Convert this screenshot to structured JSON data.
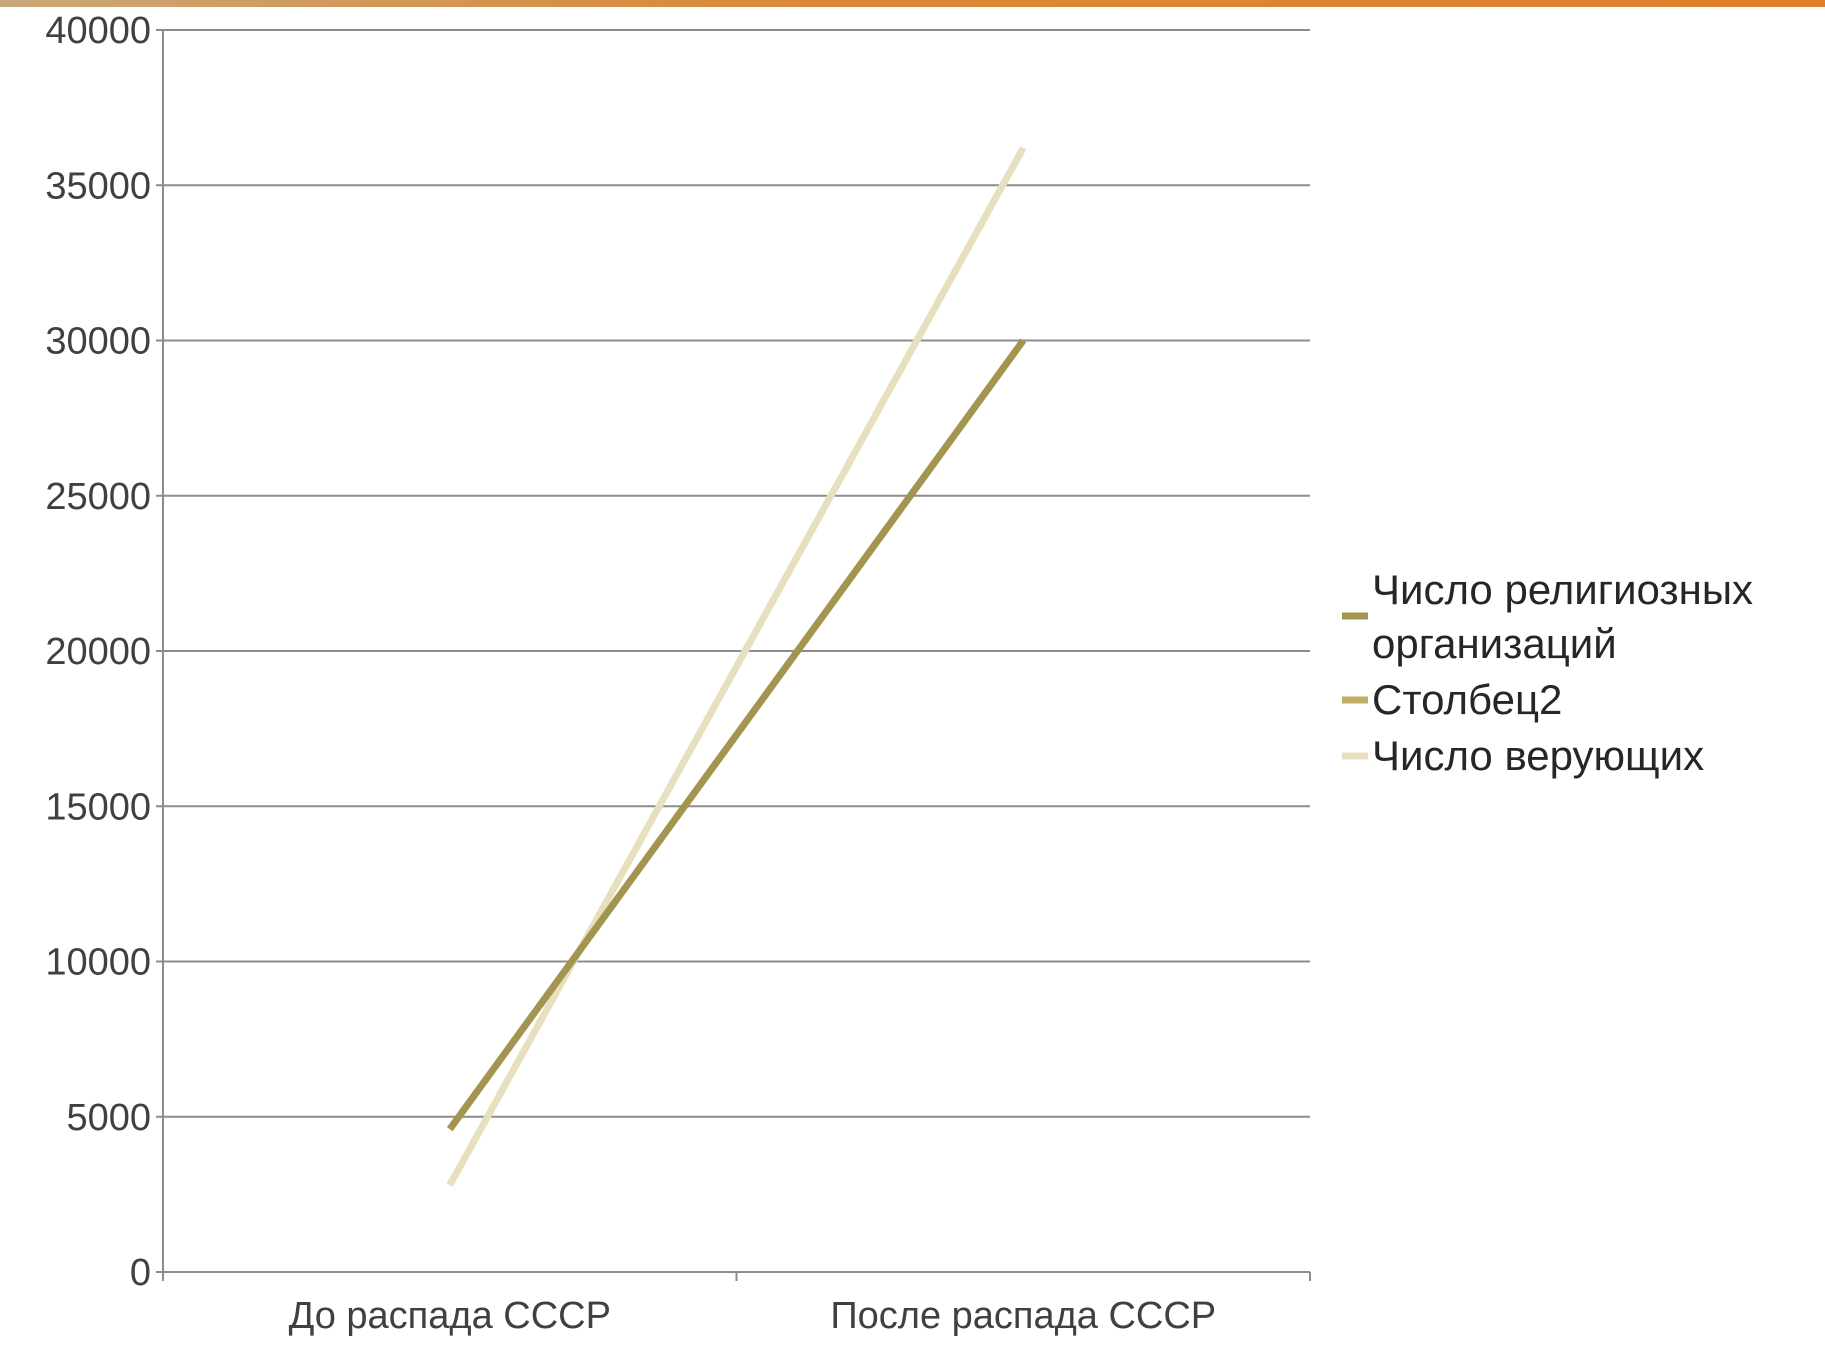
{
  "chart_data": {
    "type": "line",
    "title": "",
    "xlabel": "",
    "ylabel": "",
    "categories": [
      "До распада СССР",
      "После распада СССР"
    ],
    "ylim": [
      0,
      40000
    ],
    "yticks": [
      0,
      5000,
      10000,
      15000,
      20000,
      25000,
      30000,
      35000,
      40000
    ],
    "grid": true,
    "legend_position": "right",
    "series": [
      {
        "name": "Число религиозных организаций",
        "name_lines": [
          "Число религиозных",
          "организаций"
        ],
        "values": [
          4600,
          30000
        ],
        "color": "#a39550",
        "stroke": 7
      },
      {
        "name": "Столбец2",
        "name_lines": [
          "Столбец2"
        ],
        "values": [
          null,
          null
        ],
        "color": "#c2ad68",
        "stroke": 7
      },
      {
        "name": "Число верующих",
        "name_lines": [
          "Число верующих"
        ],
        "values": [
          2800,
          36200
        ],
        "color": "#e8dfbf",
        "stroke": 7
      }
    ]
  },
  "colors": {
    "accent_stripe": "#e07f2b",
    "grid": "#8c8c8c",
    "axis": "#8c8c8c"
  }
}
